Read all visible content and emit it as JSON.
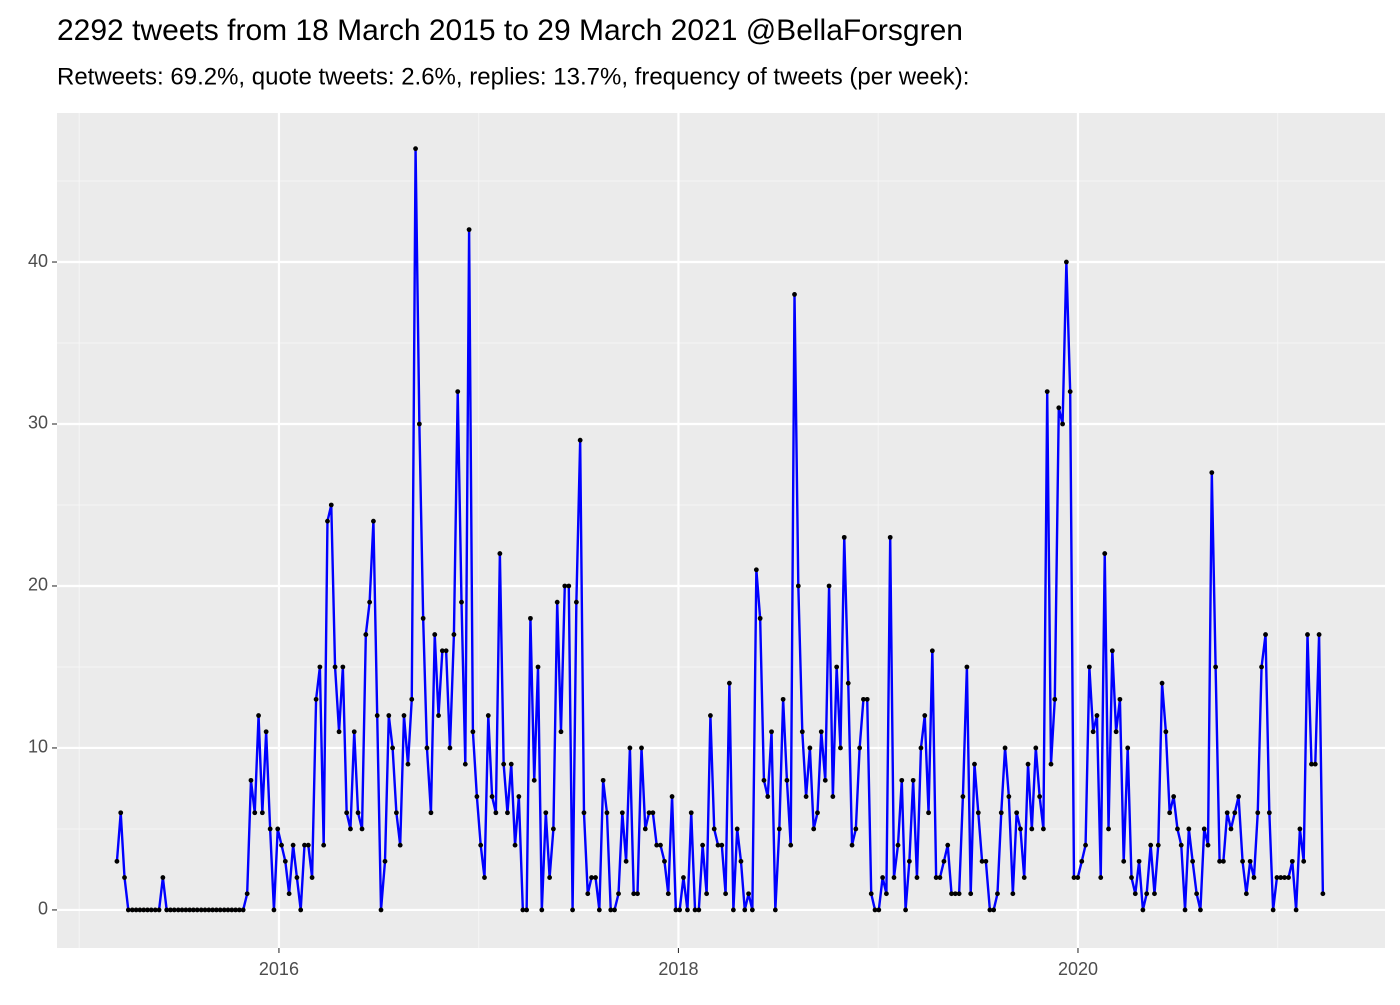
{
  "chart_data": {
    "type": "line",
    "title": "2292 tweets from 18 March 2015 to 29 March 2021 @BellaForsgren",
    "subtitle": "Retweets: 69.2%, quote tweets: 2.6%, replies: 13.7%, frequency of tweets (per week):",
    "xlim": [
      2014.889,
      2021.537
    ],
    "xticks": [
      2016,
      2018,
      2020
    ],
    "ylim": [
      -2.35,
      49.2
    ],
    "yticks": [
      0,
      10,
      20,
      30,
      40
    ],
    "grid": true,
    "minor_grid": true,
    "point_color": "#000000",
    "x": [
      2015.189,
      2015.208,
      2015.227,
      2015.246,
      2015.266,
      2015.285,
      2015.304,
      2015.323,
      2015.342,
      2015.361,
      2015.381,
      2015.4,
      2015.419,
      2015.438,
      2015.457,
      2015.476,
      2015.496,
      2015.515,
      2015.534,
      2015.553,
      2015.572,
      2015.591,
      2015.611,
      2015.63,
      2015.649,
      2015.668,
      2015.687,
      2015.706,
      2015.726,
      2015.745,
      2015.764,
      2015.783,
      2015.802,
      2015.821,
      2015.841,
      2015.86,
      2015.879,
      2015.898,
      2015.917,
      2015.936,
      2015.956,
      2015.975,
      2015.994,
      2016.013,
      2016.032,
      2016.051,
      2016.071,
      2016.09,
      2016.109,
      2016.128,
      2016.147,
      2016.166,
      2016.186,
      2016.205,
      2016.224,
      2016.243,
      2016.262,
      2016.281,
      2016.301,
      2016.32,
      2016.339,
      2016.358,
      2016.377,
      2016.396,
      2016.416,
      2016.435,
      2016.454,
      2016.473,
      2016.492,
      2016.511,
      2016.531,
      2016.55,
      2016.569,
      2016.588,
      2016.607,
      2016.626,
      2016.646,
      2016.665,
      2016.684,
      2016.703,
      2016.722,
      2016.741,
      2016.761,
      2016.78,
      2016.799,
      2016.818,
      2016.837,
      2016.856,
      2016.876,
      2016.895,
      2016.914,
      2016.933,
      2016.952,
      2016.971,
      2016.991,
      2017.01,
      2017.029,
      2017.048,
      2017.067,
      2017.086,
      2017.106,
      2017.125,
      2017.144,
      2017.163,
      2017.182,
      2017.201,
      2017.221,
      2017.24,
      2017.259,
      2017.278,
      2017.297,
      2017.316,
      2017.336,
      2017.355,
      2017.374,
      2017.393,
      2017.412,
      2017.431,
      2017.451,
      2017.47,
      2017.489,
      2017.508,
      2017.527,
      2017.546,
      2017.565,
      2017.585,
      2017.604,
      2017.623,
      2017.642,
      2017.661,
      2017.68,
      2017.7,
      2017.719,
      2017.738,
      2017.757,
      2017.776,
      2017.795,
      2017.815,
      2017.834,
      2017.853,
      2017.872,
      2017.891,
      2017.91,
      2017.93,
      2017.949,
      2017.968,
      2017.987,
      2018.006,
      2018.025,
      2018.045,
      2018.064,
      2018.083,
      2018.102,
      2018.121,
      2018.141,
      2018.16,
      2018.179,
      2018.198,
      2018.217,
      2018.236,
      2018.255,
      2018.275,
      2018.294,
      2018.313,
      2018.332,
      2018.351,
      2018.37,
      2018.39,
      2018.409,
      2018.428,
      2018.447,
      2018.466,
      2018.485,
      2018.505,
      2018.524,
      2018.543,
      2018.562,
      2018.581,
      2018.6,
      2018.62,
      2018.639,
      2018.658,
      2018.677,
      2018.696,
      2018.715,
      2018.735,
      2018.754,
      2018.773,
      2018.792,
      2018.811,
      2018.83,
      2018.85,
      2018.869,
      2018.888,
      2018.907,
      2018.926,
      2018.945,
      2018.965,
      2018.984,
      2019.003,
      2019.022,
      2019.041,
      2019.06,
      2019.079,
      2019.099,
      2019.118,
      2019.137,
      2019.156,
      2019.175,
      2019.194,
      2019.214,
      2019.233,
      2019.252,
      2019.271,
      2019.29,
      2019.309,
      2019.329,
      2019.348,
      2019.367,
      2019.386,
      2019.405,
      2019.424,
      2019.444,
      2019.463,
      2019.482,
      2019.501,
      2019.52,
      2019.539,
      2019.559,
      2019.578,
      2019.597,
      2019.616,
      2019.635,
      2019.654,
      2019.674,
      2019.693,
      2019.712,
      2019.731,
      2019.75,
      2019.769,
      2019.789,
      2019.808,
      2019.827,
      2019.846,
      2019.865,
      2019.884,
      2019.904,
      2019.923,
      2019.942,
      2019.961,
      2019.98,
      2019.999,
      2020.019,
      2020.038,
      2020.057,
      2020.076,
      2020.095,
      2020.114,
      2020.134,
      2020.153,
      2020.172,
      2020.191,
      2020.21,
      2020.229,
      2020.249,
      2020.268,
      2020.287,
      2020.306,
      2020.325,
      2020.344,
      2020.364,
      2020.383,
      2020.402,
      2020.421,
      2020.44,
      2020.459,
      2020.479,
      2020.498,
      2020.517,
      2020.536,
      2020.555,
      2020.574,
      2020.594,
      2020.613,
      2020.632,
      2020.651,
      2020.67,
      2020.689,
      2020.709,
      2020.728,
      2020.747,
      2020.766,
      2020.785,
      2020.804,
      2020.824,
      2020.843,
      2020.862,
      2020.881,
      2020.9,
      2020.919,
      2020.939,
      2020.958,
      2020.977,
      2020.996,
      2021.015,
      2021.034,
      2021.054,
      2021.073,
      2021.092,
      2021.111,
      2021.13,
      2021.149,
      2021.169,
      2021.188,
      2021.207,
      2021.226
    ],
    "series": [
      {
        "color": "#0000ff",
        "values": [
          3,
          6,
          2,
          0,
          0,
          0,
          0,
          0,
          0,
          0,
          0,
          0,
          2,
          0,
          0,
          0,
          0,
          0,
          0,
          0,
          0,
          0,
          0,
          0,
          0,
          0,
          0,
          0,
          0,
          0,
          0,
          0,
          0,
          0,
          1,
          8,
          6,
          12,
          6,
          11,
          5,
          0,
          5,
          4,
          3,
          1,
          4,
          2,
          0,
          4,
          4,
          2,
          13,
          15,
          4,
          24,
          25,
          15,
          11,
          15,
          6,
          5,
          11,
          6,
          5,
          17,
          19,
          24,
          12,
          0,
          3,
          12,
          10,
          6,
          4,
          12,
          9,
          13,
          47,
          30,
          18,
          10,
          6,
          17,
          12,
          16,
          16,
          10,
          17,
          32,
          19,
          9,
          42,
          11,
          7,
          4,
          2,
          12,
          7,
          6,
          22,
          9,
          6,
          9,
          4,
          7,
          0,
          0,
          18,
          8,
          15,
          0,
          6,
          2,
          5,
          19,
          11,
          20,
          20,
          0,
          19,
          29,
          6,
          1,
          2,
          2,
          0,
          8,
          6,
          0,
          0,
          1,
          6,
          3,
          10,
          1,
          1,
          10,
          5,
          6,
          6,
          4,
          4,
          3,
          1,
          7,
          0,
          0,
          2,
          0,
          6,
          0,
          0,
          4,
          1,
          12,
          5,
          4,
          4,
          1,
          14,
          0,
          5,
          3,
          0,
          1,
          0,
          21,
          18,
          8,
          7,
          11,
          0,
          5,
          13,
          8,
          4,
          38,
          20,
          11,
          7,
          10,
          5,
          6,
          11,
          8,
          20,
          7,
          15,
          10,
          23,
          14,
          4,
          5,
          10,
          13,
          13,
          1,
          0,
          0,
          2,
          1,
          23,
          2,
          4,
          8,
          0,
          3,
          8,
          2,
          10,
          12,
          6,
          16,
          2,
          2,
          3,
          4,
          1,
          1,
          1,
          7,
          15,
          1,
          9,
          6,
          3,
          3,
          0,
          0,
          1,
          6,
          10,
          7,
          1,
          6,
          5,
          2,
          9,
          5,
          10,
          7,
          5,
          32,
          9,
          13,
          31,
          30,
          40,
          32,
          2,
          2,
          3,
          4,
          15,
          11,
          12,
          2,
          22,
          5,
          16,
          11,
          13,
          3,
          10,
          2,
          1,
          3,
          0,
          1,
          4,
          1,
          4,
          14,
          11,
          6,
          7,
          5,
          4,
          0,
          5,
          3,
          1,
          0,
          5,
          4,
          27,
          15,
          3,
          3,
          6,
          5,
          6,
          7,
          3,
          1,
          3,
          2,
          6,
          15,
          17,
          6,
          0,
          2,
          2,
          2,
          2,
          3,
          0,
          5,
          3,
          17,
          9,
          9,
          17,
          1
        ]
      }
    ]
  }
}
